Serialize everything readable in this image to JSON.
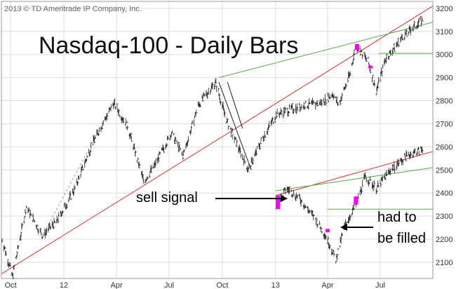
{
  "chart_data": {
    "type": "line",
    "title": "Nasdaq-100 - Daily Bars",
    "copyright": "2013 © TD Ameritrade IP Company, Inc.",
    "x_ticks": [
      "Oct",
      "12",
      "Apr",
      "Jul",
      "Oct",
      "13",
      "Apr",
      "Jul"
    ],
    "y_ticks": [
      2100,
      2200,
      2300,
      2400,
      2500,
      2600,
      2700,
      2800,
      2900,
      3000,
      3100,
      3200
    ],
    "ylim": [
      2030,
      3230
    ],
    "xlim": [
      "2011-09-15",
      "2013-09-30"
    ],
    "grid": true,
    "annotations": {
      "sell_signal": "sell signal",
      "had_to_be_filled_1": "had to",
      "had_to_be_filled_2": "be filled"
    },
    "series": [
      {
        "values": [
          [
            "2011-09-15",
            2210
          ],
          [
            "2011-10-04",
            2040
          ],
          [
            "2011-10-28",
            2340
          ],
          [
            "2011-11-25",
            2215
          ],
          [
            "2011-12-20",
            2280
          ],
          [
            "2012-01-20",
            2420
          ],
          [
            "2012-02-20",
            2620
          ],
          [
            "2012-03-27",
            2790
          ],
          [
            "2012-04-20",
            2690
          ],
          [
            "2012-05-18",
            2450
          ],
          [
            "2012-06-06",
            2520
          ],
          [
            "2012-07-05",
            2660
          ],
          [
            "2012-07-25",
            2560
          ],
          [
            "2012-08-20",
            2780
          ],
          [
            "2012-09-19",
            2880
          ],
          [
            "2012-10-10",
            2700
          ],
          [
            "2012-11-15",
            2500
          ],
          [
            "2012-12-10",
            2640
          ],
          [
            "2013-01-02",
            2740
          ],
          [
            "2013-01-25",
            2760
          ],
          [
            "2013-02-20",
            2780
          ],
          [
            "2013-03-20",
            2790
          ],
          [
            "2013-04-10",
            2830
          ],
          [
            "2013-04-20",
            2780
          ],
          [
            "2013-05-10",
            2920
          ],
          [
            "2013-05-20",
            3040
          ],
          [
            "2013-06-10",
            2970
          ],
          [
            "2013-06-24",
            2840
          ],
          [
            "2013-07-10",
            2980
          ],
          [
            "2013-08-10",
            3080
          ],
          [
            "2013-09-12",
            3150
          ]
        ]
      },
      {
        "values": [
          [
            "2013-01-02",
            2350
          ],
          [
            "2013-01-20",
            2420
          ],
          [
            "2013-02-10",
            2380
          ],
          [
            "2013-03-10",
            2290
          ],
          [
            "2013-04-01",
            2200
          ],
          [
            "2013-04-15",
            2110
          ],
          [
            "2013-05-01",
            2260
          ],
          [
            "2013-05-20",
            2350
          ],
          [
            "2013-06-05",
            2470
          ],
          [
            "2013-06-25",
            2420
          ],
          [
            "2013-07-15",
            2490
          ],
          [
            "2013-08-15",
            2560
          ],
          [
            "2013-09-12",
            2590
          ]
        ]
      }
    ]
  },
  "trendlines": [
    {
      "color": "#e03030",
      "from": [
        "2011-09-15",
        2050
      ],
      "to": [
        "2013-09-30",
        3210
      ]
    },
    {
      "color": "#e03030",
      "from": [
        "2013-01-02",
        2390
      ],
      "to": [
        "2013-09-30",
        2580
      ]
    },
    {
      "color": "#55aa44",
      "from": [
        "2012-09-25",
        2900
      ],
      "to": [
        "2013-09-30",
        3140
      ]
    },
    {
      "color": "#55aa44",
      "from": [
        "2013-01-02",
        2410
      ],
      "to": [
        "2013-09-30",
        2510
      ]
    },
    {
      "color": "#55aa44",
      "from": [
        "2013-06-28",
        3005
      ],
      "to": [
        "2013-09-30",
        3005
      ]
    },
    {
      "color": "#55aa44",
      "from": [
        "2013-04-01",
        2330
      ],
      "to": [
        "2013-09-30",
        2330
      ]
    },
    {
      "color": "#222222",
      "from": [
        "2012-09-25",
        2880
      ],
      "to": [
        "2012-11-20",
        2500
      ]
    },
    {
      "color": "#222222",
      "from": [
        "2012-10-10",
        2880
      ],
      "to": [
        "2012-11-05",
        2680
      ]
    },
    {
      "color": "#999999",
      "from": [
        "2011-11-25",
        2215
      ],
      "to": [
        "2012-03-27",
        2790
      ]
    }
  ],
  "highlights": [
    {
      "color": "#ff00ff",
      "date": "2013-01-05",
      "low": 2330,
      "high": 2390
    },
    {
      "color": "#ff00ff",
      "date": "2013-04-01",
      "low": 2230,
      "high": 2245
    },
    {
      "color": "#ff00ff",
      "date": "2013-05-20",
      "low": 2350,
      "high": 2385
    },
    {
      "color": "#ff00ff",
      "date": "2013-05-22",
      "low": 3020,
      "high": 3045
    },
    {
      "color": "#ff00ff",
      "date": "2013-06-14",
      "low": 2945,
      "high": 2952
    }
  ],
  "colors": {
    "bars": "#222222",
    "grid": "#dddddd",
    "frame": "#999999"
  }
}
